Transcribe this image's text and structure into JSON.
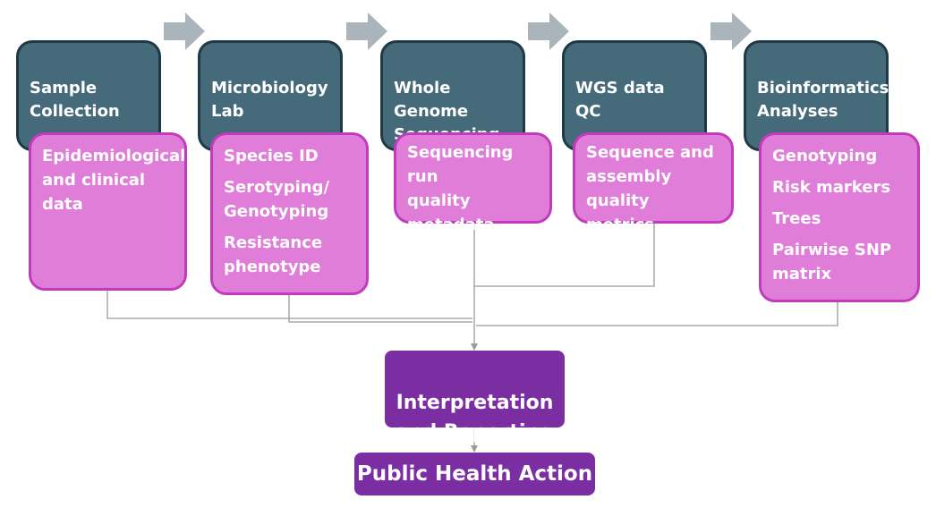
{
  "stages": [
    {
      "title": "Sample\nCollection",
      "details": [
        "Epidemiological\nand clinical\ndata"
      ]
    },
    {
      "title": "Microbiology\nLab",
      "details": [
        "Species ID",
        "Serotyping/\nGenotyping",
        "Resistance\nphenotype"
      ]
    },
    {
      "title": "Whole\nGenome\nSequencing",
      "details": [
        "Sequencing run\nquality\nmetadata"
      ]
    },
    {
      "title": "WGS data QC",
      "details": [
        "Sequence and\nassembly\nquality metrics"
      ]
    },
    {
      "title": "Bioinformatics\nAnalyses",
      "details": [
        "Genotyping",
        "Risk markers",
        "Trees",
        "Pairwise SNP\nmatrix"
      ]
    }
  ],
  "outputs": {
    "interpretation": "Interpretation\nand Reporting",
    "action": "Public Health Action"
  },
  "colors": {
    "stage_fill": "#456a7a",
    "detail_fill": "#df7dd8",
    "detail_border": "#c13cbc",
    "output_fill": "#7a2ea2",
    "arrow_fill": "#a9b5bb",
    "connector": "#9a9a9a"
  }
}
